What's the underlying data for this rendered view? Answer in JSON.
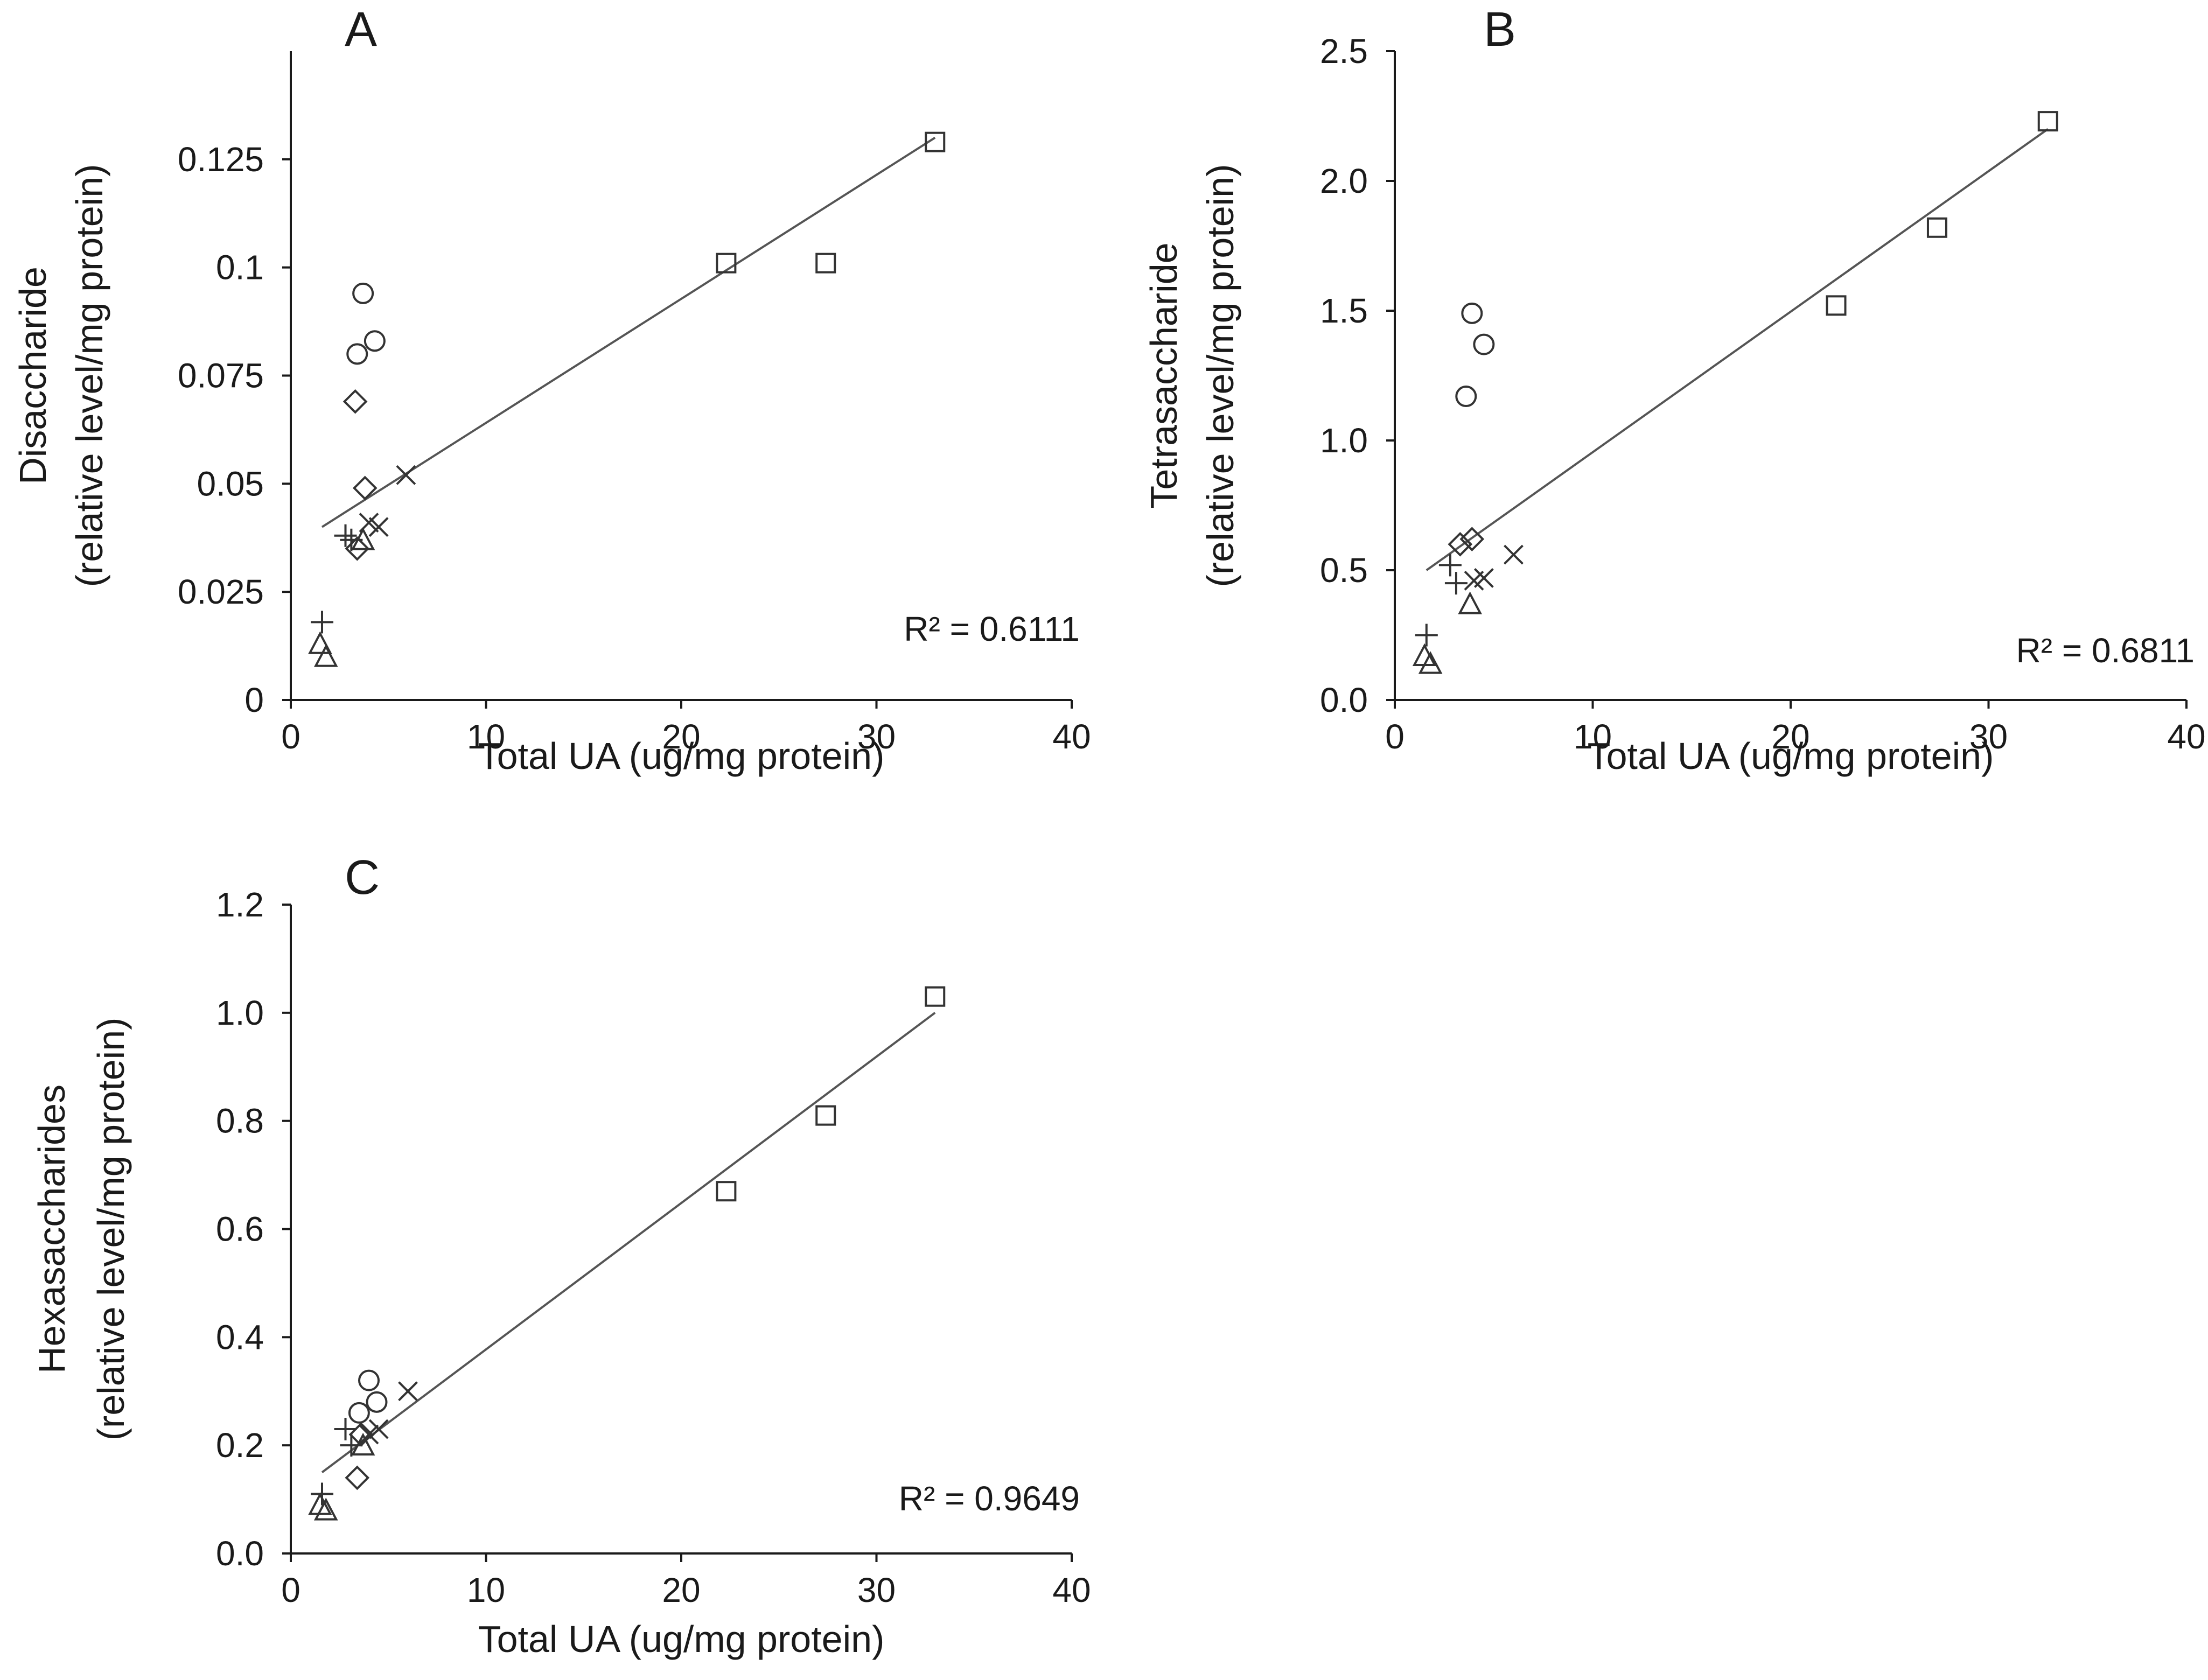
{
  "chart_data": [
    {
      "type": "scatter",
      "panel_label": "A",
      "xlabel": "Total UA (ug/mg protein)",
      "ylabel": [
        "Disaccharide",
        "(relative level/mg protein)"
      ],
      "xlim": [
        0,
        40
      ],
      "ylim": [
        0,
        0.15
      ],
      "xticks": [
        0,
        10,
        20,
        30,
        40
      ],
      "xtick_labels": [
        "0",
        "10",
        "20",
        "30",
        "40"
      ],
      "yticks": [
        0,
        0.025,
        0.05,
        0.075,
        0.1,
        0.125
      ],
      "ytick_labels": [
        "0",
        "0.025",
        "0.05",
        "0.075",
        "0.1",
        "0.125"
      ],
      "r2_text": "R² = 0.6111",
      "trendline": {
        "x": [
          1.6,
          33
        ],
        "y": [
          0.04,
          0.13
        ]
      },
      "series": [
        {
          "name": "square",
          "marker": "square",
          "x": [
            22.3,
            27.4,
            33.0
          ],
          "y": [
            0.101,
            0.101,
            0.129
          ]
        },
        {
          "name": "circle",
          "marker": "circle",
          "x": [
            3.7,
            3.4,
            4.3
          ],
          "y": [
            0.094,
            0.08,
            0.083
          ]
        },
        {
          "name": "diamond",
          "marker": "diamond",
          "x": [
            3.3,
            3.8,
            3.4
          ],
          "y": [
            0.069,
            0.049,
            0.035
          ]
        },
        {
          "name": "cross",
          "marker": "x",
          "x": [
            5.9,
            4.0,
            4.5
          ],
          "y": [
            0.052,
            0.041,
            0.04
          ]
        },
        {
          "name": "plus",
          "marker": "plus",
          "x": [
            1.6,
            2.8,
            3.1
          ],
          "y": [
            0.018,
            0.038,
            0.037
          ]
        },
        {
          "name": "triangle",
          "marker": "triangle",
          "x": [
            1.5,
            1.8,
            3.7
          ],
          "y": [
            0.013,
            0.01,
            0.037
          ]
        }
      ]
    },
    {
      "type": "scatter",
      "panel_label": "B",
      "xlabel": "Total UA (ug/mg protein)",
      "ylabel": [
        "Tetrasaccharide",
        "(relative level/mg protein)"
      ],
      "xlim": [
        0,
        40
      ],
      "ylim": [
        0,
        2.5
      ],
      "xticks": [
        0,
        10,
        20,
        30,
        40
      ],
      "xtick_labels": [
        "0",
        "10",
        "20",
        "30",
        "40"
      ],
      "yticks": [
        0,
        0.5,
        1.0,
        1.5,
        2.0,
        2.5
      ],
      "ytick_labels": [
        "0.0",
        "0.5",
        "1.0",
        "1.5",
        "2.0",
        "2.5"
      ],
      "r2_text": "R² = 0.6811",
      "trendline": {
        "x": [
          1.6,
          33
        ],
        "y": [
          0.5,
          2.2
        ]
      },
      "series": [
        {
          "name": "square",
          "marker": "square",
          "x": [
            22.3,
            27.4,
            33.0
          ],
          "y": [
            1.52,
            1.82,
            2.23
          ]
        },
        {
          "name": "circle",
          "marker": "circle",
          "x": [
            3.9,
            4.5,
            3.6
          ],
          "y": [
            1.49,
            1.37,
            1.17
          ]
        },
        {
          "name": "diamond",
          "marker": "diamond",
          "x": [
            3.3,
            3.9
          ],
          "y": [
            0.6,
            0.62
          ]
        },
        {
          "name": "cross",
          "marker": "x",
          "x": [
            6.0,
            4.0,
            4.5
          ],
          "y": [
            0.56,
            0.46,
            0.47
          ]
        },
        {
          "name": "plus",
          "marker": "plus",
          "x": [
            1.6,
            2.8,
            3.1
          ],
          "y": [
            0.25,
            0.52,
            0.45
          ]
        },
        {
          "name": "triangle",
          "marker": "triangle",
          "x": [
            1.5,
            1.8,
            3.8
          ],
          "y": [
            0.17,
            0.14,
            0.37
          ]
        }
      ]
    },
    {
      "type": "scatter",
      "panel_label": "C",
      "xlabel": "Total UA (ug/mg protein)",
      "ylabel": [
        "Hexasaccharides",
        "(relative level/mg protein)"
      ],
      "xlim": [
        0,
        40
      ],
      "ylim": [
        0,
        1.2
      ],
      "xticks": [
        0,
        10,
        20,
        30,
        40
      ],
      "xtick_labels": [
        "0",
        "10",
        "20",
        "30",
        "40"
      ],
      "yticks": [
        0,
        0.2,
        0.4,
        0.6,
        0.8,
        1.0,
        1.2
      ],
      "ytick_labels": [
        "0.0",
        "0.2",
        "0.4",
        "0.6",
        "0.8",
        "1.0",
        "1.2"
      ],
      "r2_text": "R² = 0.9649",
      "trendline": {
        "x": [
          1.6,
          33
        ],
        "y": [
          0.15,
          1.0
        ]
      },
      "series": [
        {
          "name": "square",
          "marker": "square",
          "x": [
            22.3,
            27.4,
            33.0
          ],
          "y": [
            0.67,
            0.81,
            1.03
          ]
        },
        {
          "name": "circle",
          "marker": "circle",
          "x": [
            4.0,
            4.4,
            3.5
          ],
          "y": [
            0.32,
            0.28,
            0.26
          ]
        },
        {
          "name": "diamond",
          "marker": "diamond",
          "x": [
            3.4,
            3.6
          ],
          "y": [
            0.14,
            0.22
          ]
        },
        {
          "name": "cross",
          "marker": "x",
          "x": [
            6.0,
            4.0,
            4.5
          ],
          "y": [
            0.3,
            0.22,
            0.23
          ]
        },
        {
          "name": "plus",
          "marker": "plus",
          "x": [
            1.6,
            2.8,
            3.1
          ],
          "y": [
            0.11,
            0.23,
            0.2
          ]
        },
        {
          "name": "triangle",
          "marker": "triangle",
          "x": [
            1.5,
            1.8,
            3.7
          ],
          "y": [
            0.09,
            0.08,
            0.2
          ]
        }
      ]
    }
  ]
}
